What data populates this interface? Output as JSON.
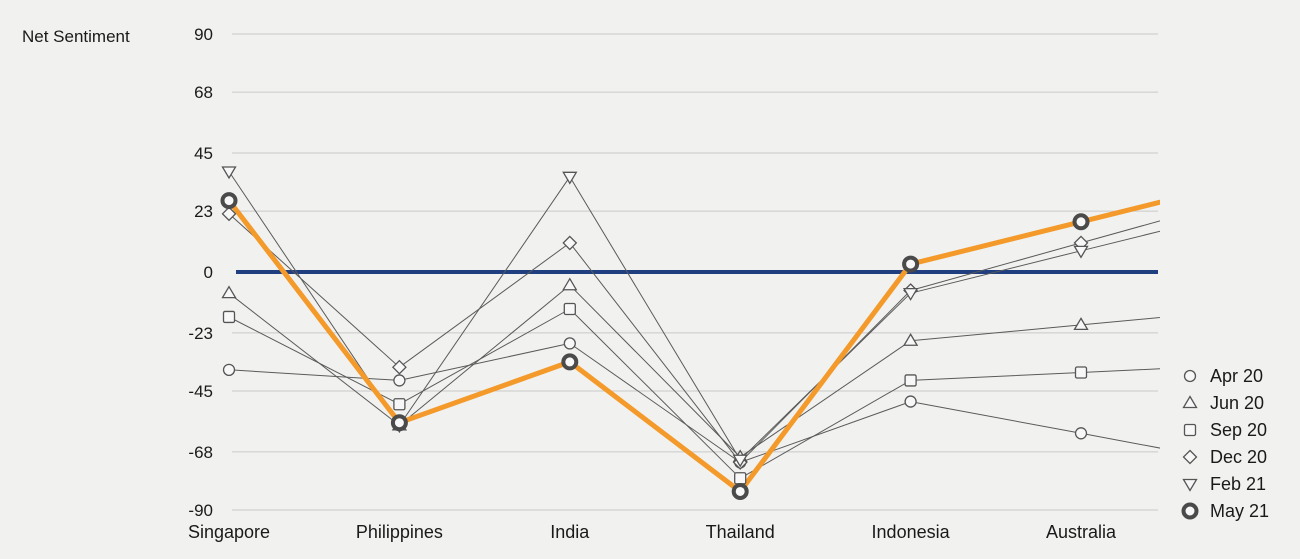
{
  "chart_data": {
    "type": "line",
    "ylabel": "Net Sentiment",
    "ylim": [
      -90,
      90
    ],
    "yticks": [
      "90",
      "68",
      "45",
      "23",
      "0",
      "-23",
      "-45",
      "-68",
      "-90"
    ],
    "categories": [
      "Singapore",
      "Philippines",
      "India",
      "Thailand",
      "Indonesia",
      "Australia"
    ],
    "legend_position": "right",
    "series": [
      {
        "name": "Apr 20",
        "marker": "circle",
        "color": "#555555",
        "highlight": false,
        "values": [
          -37,
          -41,
          -27,
          -72,
          -49,
          -61
        ]
      },
      {
        "name": "Jun 20",
        "marker": "triangle-up",
        "color": "#555555",
        "highlight": false,
        "values": [
          -8,
          -58,
          -5,
          -70,
          -26,
          -20
        ]
      },
      {
        "name": "Sep 20",
        "marker": "square",
        "color": "#555555",
        "highlight": false,
        "values": [
          -17,
          -50,
          -14,
          -78,
          -41,
          -38
        ]
      },
      {
        "name": "Dec 20",
        "marker": "diamond",
        "color": "#555555",
        "highlight": false,
        "values": [
          22,
          -36,
          11,
          -72,
          -7,
          11
        ]
      },
      {
        "name": "Feb 21",
        "marker": "triangle-down",
        "color": "#555555",
        "highlight": false,
        "values": [
          38,
          -58,
          36,
          -71,
          -8,
          8
        ]
      },
      {
        "name": "May 21",
        "marker": "ring",
        "color": "#f39a2b",
        "highlight": true,
        "values": [
          27,
          -57,
          -34,
          -83,
          3,
          19
        ]
      }
    ],
    "zero_line_color": "#1f3f80"
  }
}
